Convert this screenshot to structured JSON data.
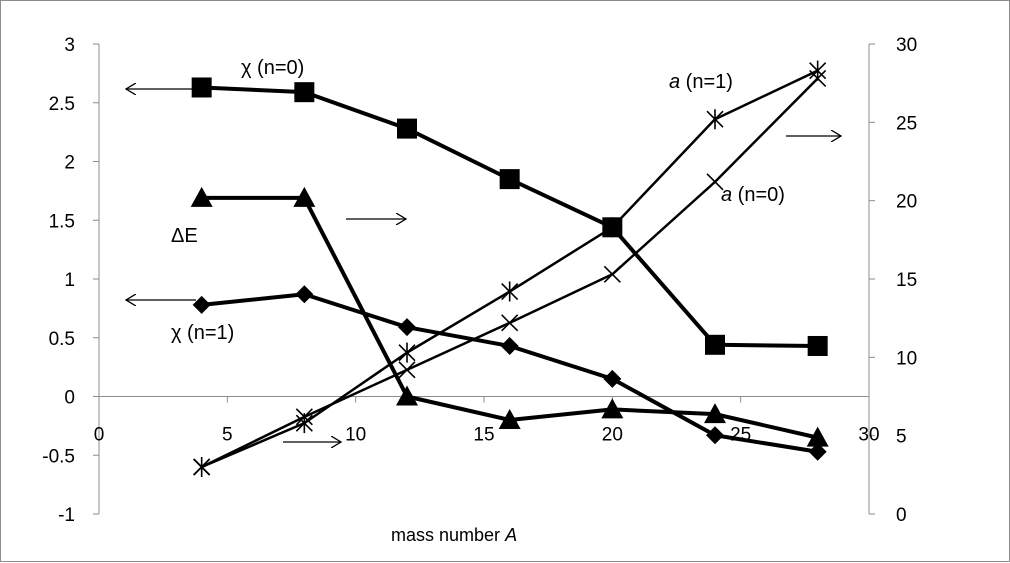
{
  "chart_data": {
    "type": "line",
    "title": "",
    "xlabel": "mass number",
    "xlabel_italic": "A",
    "xlim": [
      0,
      30
    ],
    "x_ticks": [
      0,
      5,
      10,
      15,
      20,
      25,
      30
    ],
    "ylim_left": [
      -1,
      3
    ],
    "y_ticks_left": [
      -1,
      -0.5,
      0,
      0.5,
      1,
      1.5,
      2,
      2.5,
      3
    ],
    "ylim_right": [
      0,
      30
    ],
    "y_ticks_right": [
      0,
      5,
      10,
      15,
      20,
      25,
      30
    ],
    "grid": false,
    "legend": "none",
    "series": [
      {
        "axis": "left",
        "marker": "square",
        "x": [
          4,
          8,
          12,
          16,
          20,
          24,
          28
        ],
        "y": [
          2.63,
          2.59,
          2.28,
          1.85,
          1.44,
          0.44,
          0.43
        ]
      },
      {
        "axis": "left",
        "marker": "triangle",
        "x": [
          4,
          8,
          12,
          16,
          20,
          24,
          28
        ],
        "y": [
          1.69,
          1.69,
          0.0,
          -0.2,
          -0.11,
          -0.15,
          -0.35
        ]
      },
      {
        "axis": "left",
        "marker": "diamond",
        "x": [
          4,
          8,
          12,
          16,
          20,
          24,
          28
        ],
        "y": [
          0.78,
          0.87,
          0.59,
          0.43,
          0.15,
          -0.33,
          -0.47
        ]
      },
      {
        "axis": "right",
        "marker": "x",
        "x": [
          4,
          8,
          12,
          16,
          20,
          24,
          28
        ],
        "y": [
          3.0,
          6.2,
          9.2,
          12.2,
          15.3,
          21.2,
          27.8
        ]
      },
      {
        "axis": "right",
        "marker": "star",
        "x": [
          4,
          8,
          12,
          16,
          20,
          24,
          28
        ],
        "y": [
          3.0,
          5.8,
          10.3,
          14.2,
          18.3,
          25.2,
          28.3
        ]
      }
    ],
    "annotations": [
      {
        "text": "χ (n=0)",
        "arrow": "left"
      },
      {
        "text": "ΔE",
        "arrow": "right"
      },
      {
        "text": "χ (n=1)",
        "arrow": "left"
      },
      {
        "text_italic": "a",
        "text": " (n=0)",
        "arrow": "none"
      },
      {
        "text_italic": "a",
        "text": " (n=1)",
        "arrow": "right"
      }
    ]
  }
}
